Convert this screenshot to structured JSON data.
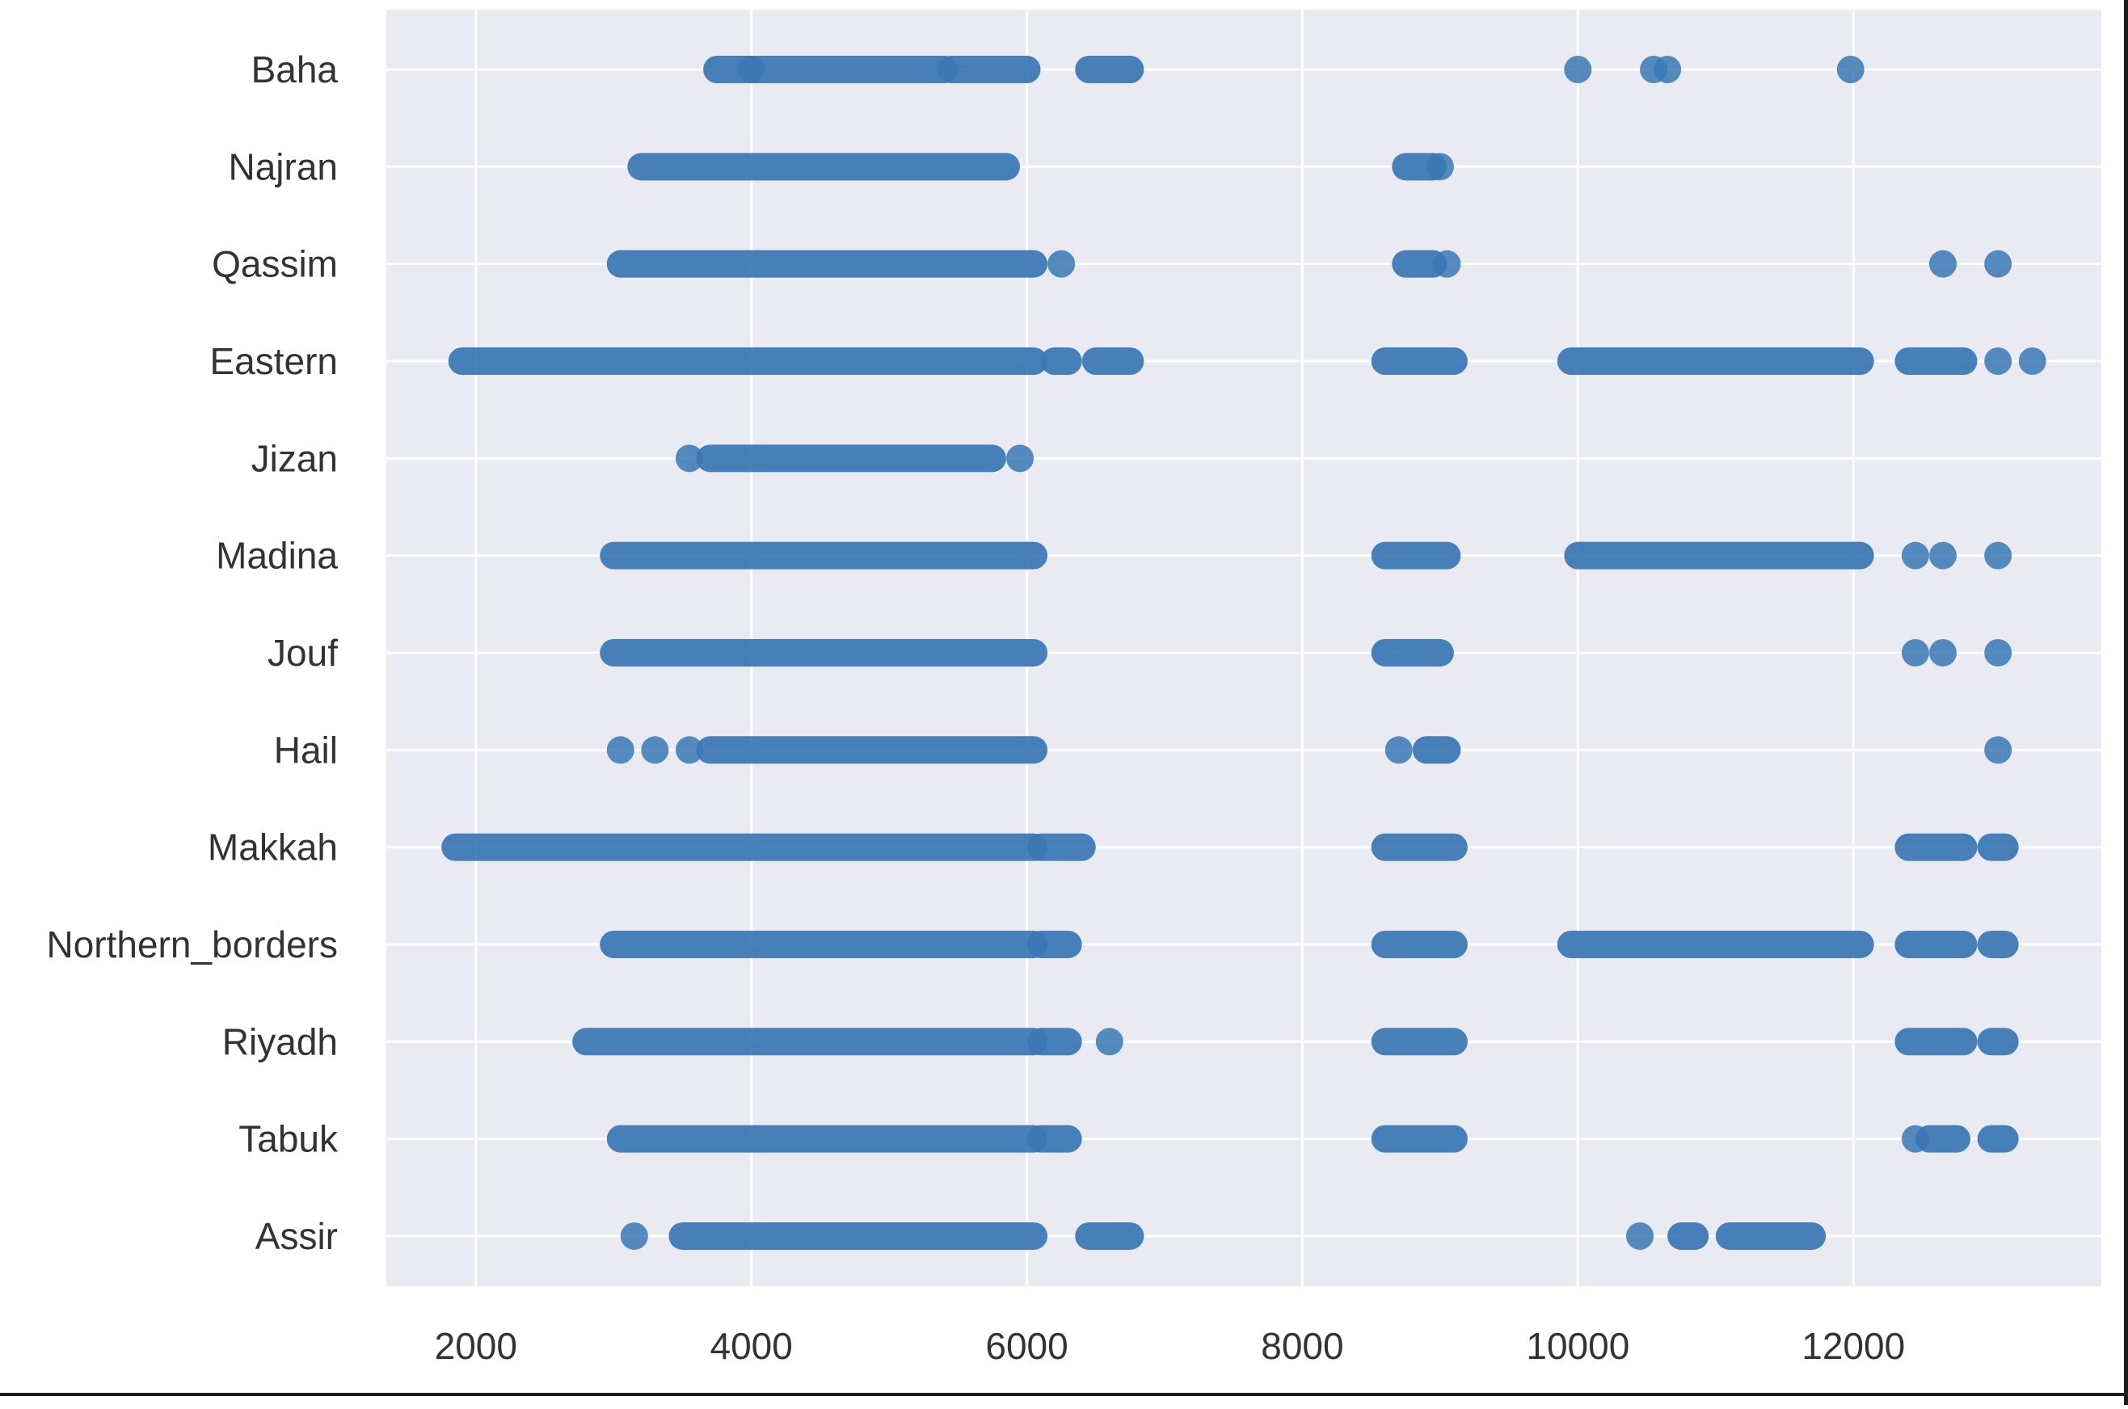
{
  "chart_data": {
    "type": "scatter",
    "title": "",
    "xlabel": "",
    "ylabel": "",
    "xlim": [
      1350,
      13800
    ],
    "x_ticks": [
      2000,
      4000,
      6000,
      8000,
      10000,
      12000
    ],
    "x_tick_labels": [
      "2000",
      "4000",
      "6000",
      "8000",
      "10000",
      "12000"
    ],
    "categories": [
      "Baha",
      "Najran",
      "Qassim",
      "Eastern",
      "Jizan",
      "Madina",
      "Jouf",
      "Hail",
      "Makkah",
      "Northern_borders",
      "Riyadh",
      "Tabuk",
      "Assir"
    ],
    "grid": true,
    "legend": "none",
    "marker_color": "#3a78b5",
    "plot_background": "#eaeaf2",
    "grid_color": "#ffffff",
    "series": [
      {
        "category": "Baha",
        "ranges": [
          [
            3750,
            4000
          ],
          [
            4000,
            5400
          ],
          [
            5450,
            6000
          ],
          [
            6450,
            6750
          ]
        ],
        "points": [
          10000,
          10550,
          10650,
          11980
        ]
      },
      {
        "category": "Najran",
        "ranges": [
          [
            3200,
            5850
          ],
          [
            8750,
            8950
          ]
        ],
        "points": [
          9000
        ]
      },
      {
        "category": "Qassim",
        "ranges": [
          [
            3050,
            6050
          ],
          [
            8750,
            8950
          ]
        ],
        "points": [
          6250,
          9050,
          12650,
          13050
        ]
      },
      {
        "category": "Eastern",
        "ranges": [
          [
            1900,
            6050
          ],
          [
            6200,
            6300
          ],
          [
            6500,
            6750
          ],
          [
            8600,
            9100
          ],
          [
            9950,
            12050
          ],
          [
            12400,
            12800
          ]
        ],
        "points": [
          13050,
          13300
        ]
      },
      {
        "category": "Jizan",
        "ranges": [
          [
            3700,
            5750
          ]
        ],
        "points": [
          3550,
          5950
        ]
      },
      {
        "category": "Madina",
        "ranges": [
          [
            3000,
            6050
          ],
          [
            8600,
            9050
          ],
          [
            10000,
            12050
          ]
        ],
        "points": [
          12450,
          12650,
          13050
        ]
      },
      {
        "category": "Jouf",
        "ranges": [
          [
            3000,
            6050
          ],
          [
            8600,
            9000
          ]
        ],
        "points": [
          12450,
          12650,
          13050
        ]
      },
      {
        "category": "Hail",
        "ranges": [
          [
            3700,
            6050
          ],
          [
            8900,
            9050
          ]
        ],
        "points": [
          3050,
          3300,
          3550,
          8700,
          13050
        ]
      },
      {
        "category": "Makkah",
        "ranges": [
          [
            1850,
            6050
          ],
          [
            6100,
            6400
          ],
          [
            8600,
            9100
          ],
          [
            12400,
            12800
          ],
          [
            13000,
            13100
          ]
        ],
        "points": []
      },
      {
        "category": "Northern_borders",
        "ranges": [
          [
            3000,
            6050
          ],
          [
            6100,
            6300
          ],
          [
            8600,
            9100
          ],
          [
            9950,
            12050
          ],
          [
            12400,
            12800
          ],
          [
            13000,
            13100
          ]
        ],
        "points": []
      },
      {
        "category": "Riyadh",
        "ranges": [
          [
            2800,
            6050
          ],
          [
            6100,
            6300
          ],
          [
            8600,
            9100
          ],
          [
            12400,
            12800
          ],
          [
            13000,
            13100
          ]
        ],
        "points": [
          6600
        ]
      },
      {
        "category": "Tabuk",
        "ranges": [
          [
            3050,
            6050
          ],
          [
            6100,
            6300
          ],
          [
            8600,
            9100
          ],
          [
            12550,
            12750
          ],
          [
            13000,
            13100
          ]
        ],
        "points": [
          12450
        ]
      },
      {
        "category": "Assir",
        "ranges": [
          [
            3500,
            6050
          ],
          [
            6450,
            6750
          ],
          [
            10750,
            10850
          ],
          [
            11100,
            11700
          ]
        ],
        "points": [
          3150,
          10450
        ]
      }
    ]
  }
}
